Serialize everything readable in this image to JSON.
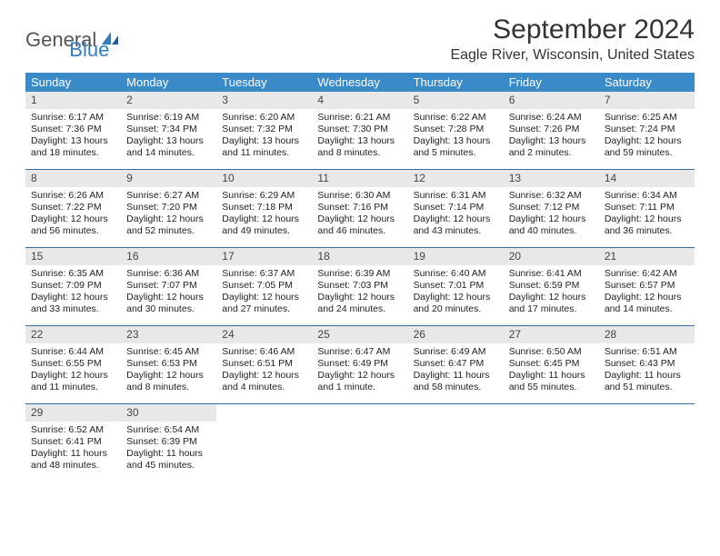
{
  "brand": {
    "text1": "General",
    "text2": "Blue"
  },
  "title": "September 2024",
  "location": "Eagle River, Wisconsin, United States",
  "colors": {
    "header_bg": "#3a8ac8",
    "header_text": "#ffffff",
    "daynum_bg": "#e8e8e8",
    "week_border": "#3a6a9a",
    "brand_blue": "#2f7fbf",
    "brand_gray": "#555555"
  },
  "dow": [
    "Sunday",
    "Monday",
    "Tuesday",
    "Wednesday",
    "Thursday",
    "Friday",
    "Saturday"
  ],
  "weeks": [
    [
      {
        "n": "1",
        "sr": "6:17 AM",
        "ss": "7:36 PM",
        "dl": "13 hours and 18 minutes."
      },
      {
        "n": "2",
        "sr": "6:19 AM",
        "ss": "7:34 PM",
        "dl": "13 hours and 14 minutes."
      },
      {
        "n": "3",
        "sr": "6:20 AM",
        "ss": "7:32 PM",
        "dl": "13 hours and 11 minutes."
      },
      {
        "n": "4",
        "sr": "6:21 AM",
        "ss": "7:30 PM",
        "dl": "13 hours and 8 minutes."
      },
      {
        "n": "5",
        "sr": "6:22 AM",
        "ss": "7:28 PM",
        "dl": "13 hours and 5 minutes."
      },
      {
        "n": "6",
        "sr": "6:24 AM",
        "ss": "7:26 PM",
        "dl": "13 hours and 2 minutes."
      },
      {
        "n": "7",
        "sr": "6:25 AM",
        "ss": "7:24 PM",
        "dl": "12 hours and 59 minutes."
      }
    ],
    [
      {
        "n": "8",
        "sr": "6:26 AM",
        "ss": "7:22 PM",
        "dl": "12 hours and 56 minutes."
      },
      {
        "n": "9",
        "sr": "6:27 AM",
        "ss": "7:20 PM",
        "dl": "12 hours and 52 minutes."
      },
      {
        "n": "10",
        "sr": "6:29 AM",
        "ss": "7:18 PM",
        "dl": "12 hours and 49 minutes."
      },
      {
        "n": "11",
        "sr": "6:30 AM",
        "ss": "7:16 PM",
        "dl": "12 hours and 46 minutes."
      },
      {
        "n": "12",
        "sr": "6:31 AM",
        "ss": "7:14 PM",
        "dl": "12 hours and 43 minutes."
      },
      {
        "n": "13",
        "sr": "6:32 AM",
        "ss": "7:12 PM",
        "dl": "12 hours and 40 minutes."
      },
      {
        "n": "14",
        "sr": "6:34 AM",
        "ss": "7:11 PM",
        "dl": "12 hours and 36 minutes."
      }
    ],
    [
      {
        "n": "15",
        "sr": "6:35 AM",
        "ss": "7:09 PM",
        "dl": "12 hours and 33 minutes."
      },
      {
        "n": "16",
        "sr": "6:36 AM",
        "ss": "7:07 PM",
        "dl": "12 hours and 30 minutes."
      },
      {
        "n": "17",
        "sr": "6:37 AM",
        "ss": "7:05 PM",
        "dl": "12 hours and 27 minutes."
      },
      {
        "n": "18",
        "sr": "6:39 AM",
        "ss": "7:03 PM",
        "dl": "12 hours and 24 minutes."
      },
      {
        "n": "19",
        "sr": "6:40 AM",
        "ss": "7:01 PM",
        "dl": "12 hours and 20 minutes."
      },
      {
        "n": "20",
        "sr": "6:41 AM",
        "ss": "6:59 PM",
        "dl": "12 hours and 17 minutes."
      },
      {
        "n": "21",
        "sr": "6:42 AM",
        "ss": "6:57 PM",
        "dl": "12 hours and 14 minutes."
      }
    ],
    [
      {
        "n": "22",
        "sr": "6:44 AM",
        "ss": "6:55 PM",
        "dl": "12 hours and 11 minutes."
      },
      {
        "n": "23",
        "sr": "6:45 AM",
        "ss": "6:53 PM",
        "dl": "12 hours and 8 minutes."
      },
      {
        "n": "24",
        "sr": "6:46 AM",
        "ss": "6:51 PM",
        "dl": "12 hours and 4 minutes."
      },
      {
        "n": "25",
        "sr": "6:47 AM",
        "ss": "6:49 PM",
        "dl": "12 hours and 1 minute."
      },
      {
        "n": "26",
        "sr": "6:49 AM",
        "ss": "6:47 PM",
        "dl": "11 hours and 58 minutes."
      },
      {
        "n": "27",
        "sr": "6:50 AM",
        "ss": "6:45 PM",
        "dl": "11 hours and 55 minutes."
      },
      {
        "n": "28",
        "sr": "6:51 AM",
        "ss": "6:43 PM",
        "dl": "11 hours and 51 minutes."
      }
    ],
    [
      {
        "n": "29",
        "sr": "6:52 AM",
        "ss": "6:41 PM",
        "dl": "11 hours and 48 minutes."
      },
      {
        "n": "30",
        "sr": "6:54 AM",
        "ss": "6:39 PM",
        "dl": "11 hours and 45 minutes."
      },
      null,
      null,
      null,
      null,
      null
    ]
  ],
  "labels": {
    "sunrise": "Sunrise:",
    "sunset": "Sunset:",
    "daylight": "Daylight:"
  }
}
